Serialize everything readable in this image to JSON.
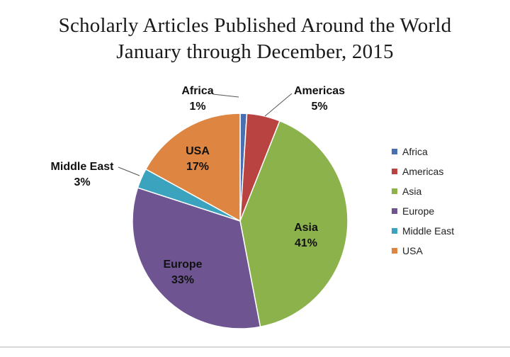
{
  "chart_data": {
    "type": "pie",
    "title": "Scholarly Articles Published Around the World",
    "subtitle": "January through December, 2015",
    "slices": [
      {
        "name": "Africa",
        "value": 1,
        "label": "1%",
        "color": "#4a6fb1"
      },
      {
        "name": "Americas",
        "value": 5,
        "label": "5%",
        "color": "#b94341"
      },
      {
        "name": "Asia",
        "value": 41,
        "label": "41%",
        "color": "#8cb24c"
      },
      {
        "name": "Europe",
        "value": 33,
        "label": "33%",
        "color": "#6e5592"
      },
      {
        "name": "Middle East",
        "value": 3,
        "label": "3%",
        "color": "#3ba3bd"
      },
      {
        "name": "USA",
        "value": 17,
        "label": "17%",
        "color": "#dd8541"
      }
    ],
    "legend_position": "right",
    "start_angle": "12 o'clock",
    "direction": "clockwise"
  }
}
